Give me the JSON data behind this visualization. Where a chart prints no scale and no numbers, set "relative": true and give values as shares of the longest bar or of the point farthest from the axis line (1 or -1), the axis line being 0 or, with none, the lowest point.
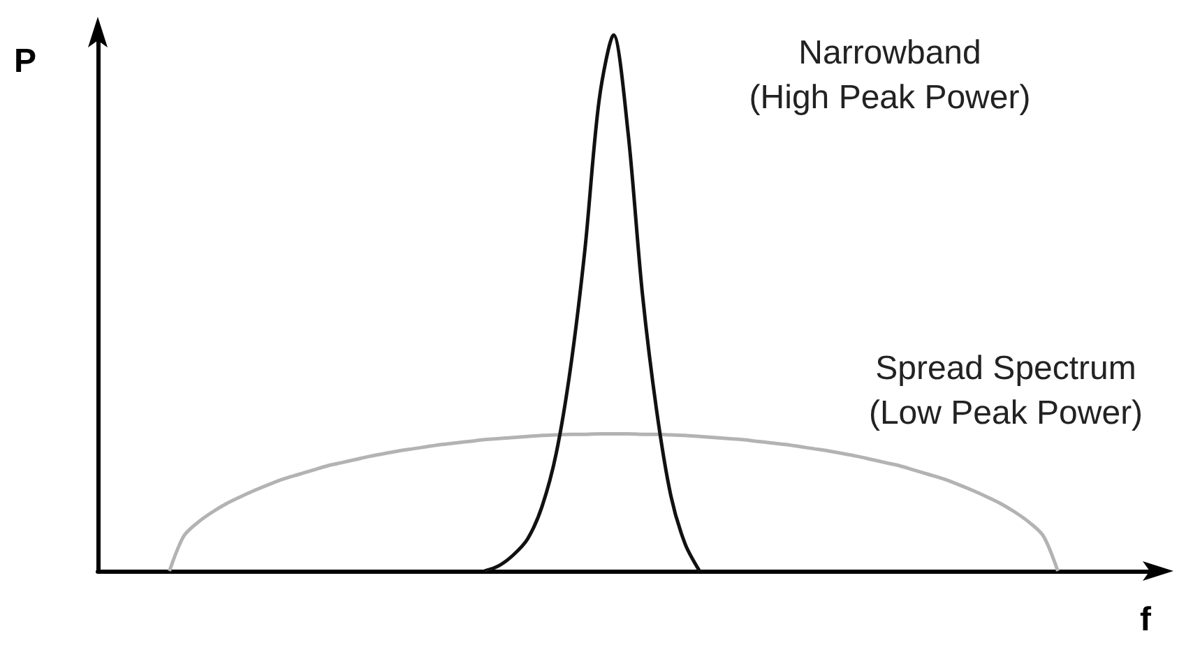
{
  "chart_data": {
    "type": "line",
    "relative": true,
    "xlabel": "f",
    "ylabel": "P",
    "grid": false,
    "categories": [
      null,
      null,
      null,
      null,
      null,
      null,
      null,
      null,
      null,
      null,
      null,
      null,
      null,
      null,
      null,
      null,
      null,
      null,
      null,
      null,
      null,
      null,
      null,
      null,
      null,
      null,
      null,
      null,
      null,
      null,
      null,
      null,
      null,
      null,
      null,
      null,
      null,
      null,
      null,
      null,
      null,
      null,
      null,
      null,
      null,
      null,
      null,
      null,
      null,
      null,
      null,
      null,
      null,
      null,
      null,
      null,
      null,
      null,
      null,
      null,
      null,
      null,
      null,
      null,
      null,
      null,
      null,
      null,
      null,
      null,
      null,
      null,
      null,
      null,
      null
    ],
    "series": [
      {
        "color": "#b3b3b3",
        "values": [
          null,
          null,
          null,
          null,
          null,
          0,
          0.065,
          0.091,
          0.11,
          0.126,
          0.139,
          0.151,
          0.162,
          0.172,
          0.18,
          0.188,
          0.196,
          0.202,
          0.208,
          0.214,
          0.219,
          0.224,
          0.228,
          0.232,
          0.236,
          0.239,
          0.242,
          0.245,
          0.247,
          0.249,
          0.251,
          0.253,
          0.254,
          0.255,
          0.255,
          0.256,
          0.256,
          0.256,
          0.255,
          0.255,
          0.254,
          0.253,
          0.251,
          0.249,
          0.247,
          0.245,
          0.242,
          0.239,
          0.236,
          0.232,
          0.228,
          0.224,
          0.219,
          0.214,
          0.208,
          0.202,
          0.196,
          0.188,
          0.18,
          0.172,
          0.162,
          0.151,
          0.139,
          0.126,
          0.11,
          0.091,
          0.065,
          0,
          null,
          null,
          null,
          null,
          null,
          null,
          null
        ]
      },
      {
        "color": "#111111",
        "values": [
          null,
          null,
          null,
          null,
          null,
          null,
          null,
          null,
          null,
          null,
          null,
          null,
          null,
          null,
          null,
          null,
          null,
          null,
          null,
          null,
          null,
          null,
          null,
          null,
          null,
          null,
          null,
          0,
          0.01,
          0.03,
          0.06,
          0.12,
          0.22,
          0.38,
          0.6,
          0.88,
          1,
          0.82,
          0.52,
          0.3,
          0.14,
          0.05,
          0,
          null,
          null,
          null,
          null,
          null,
          null,
          null,
          null,
          null,
          null,
          null,
          null,
          null,
          null,
          null,
          null,
          null,
          null,
          null,
          null,
          null,
          null,
          null,
          null,
          null,
          null,
          null,
          null,
          null,
          null,
          null,
          null
        ]
      }
    ],
    "annotations": [
      "Narrowband\n(High Peak Power)",
      "Spread Spectrum\n(Low Peak Power)"
    ]
  }
}
